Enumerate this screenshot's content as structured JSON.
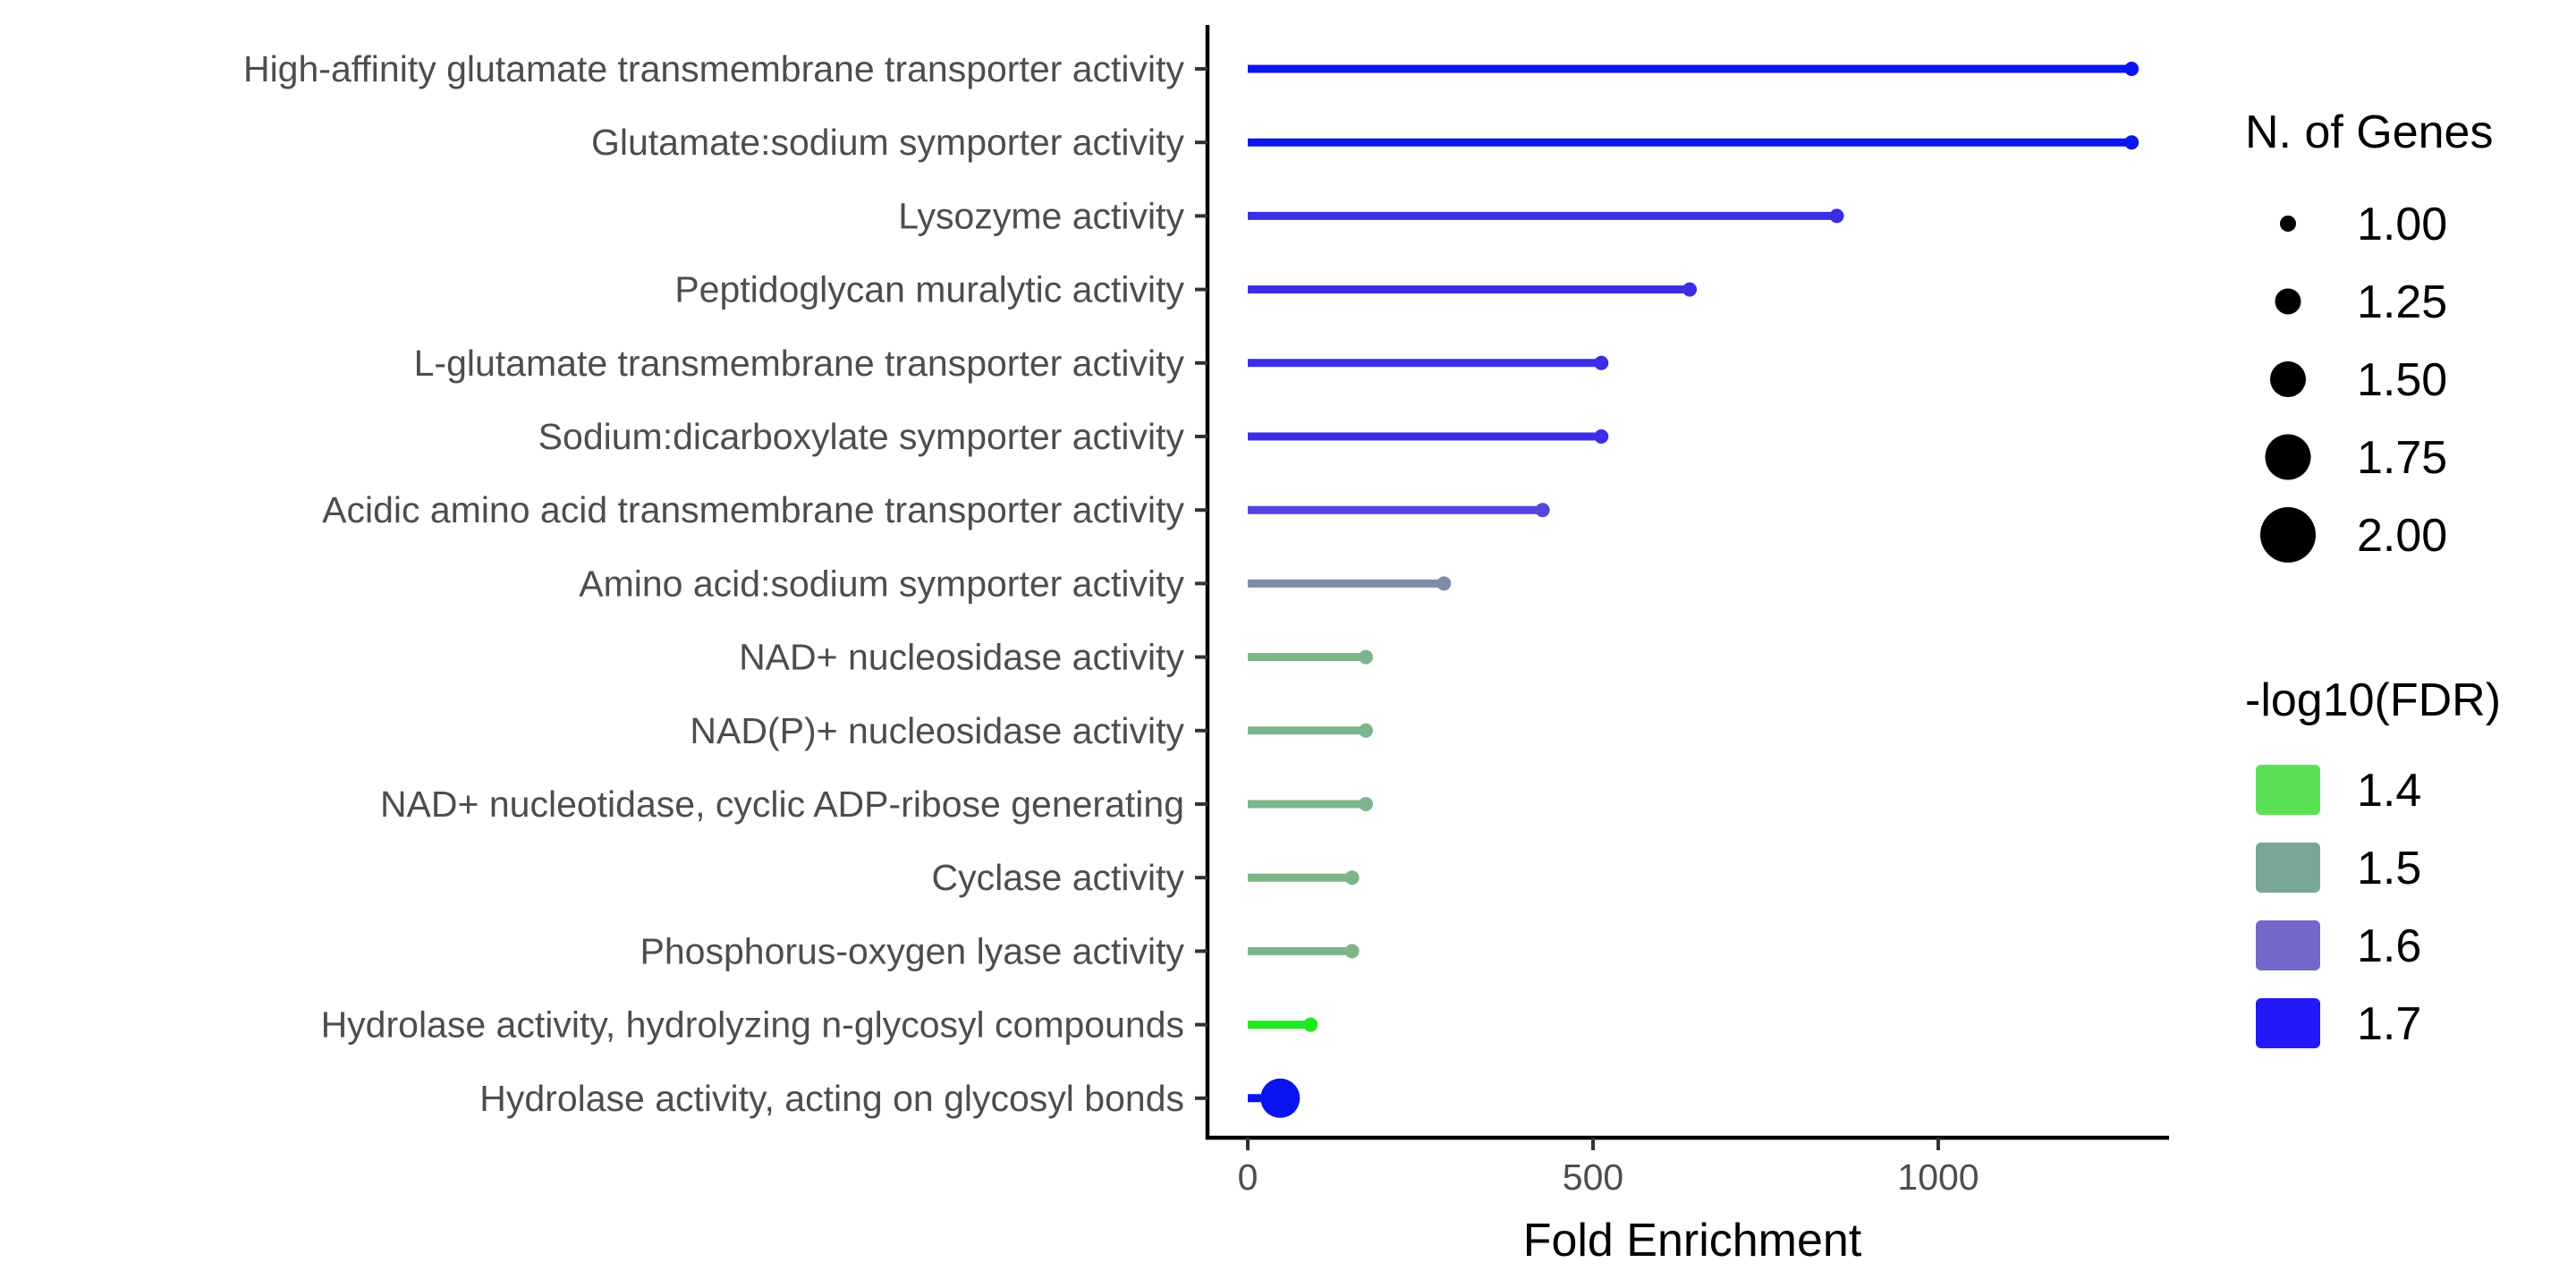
{
  "chart_data": {
    "type": "lollipop",
    "xlabel": "Fold Enrichment",
    "ylabel": "",
    "xlim": [
      -60,
      1355
    ],
    "xticks": [
      0,
      500,
      1000
    ],
    "categories": [
      "High-affinity glutamate transmembrane transporter activity",
      "Glutamate:sodium symporter activity",
      "Lysozyme activity",
      "Peptidoglycan muralytic activity",
      "L-glutamate transmembrane transporter activity",
      "Sodium:dicarboxylate symporter activity",
      "Acidic amino acid transmembrane transporter activity",
      "Amino acid:sodium symporter activity",
      "NAD+ nucleosidase activity",
      "NAD(P)+ nucleosidase activity",
      "NAD+ nucleotidase, cyclic ADP-ribose generating",
      "Cyclase activity",
      "Phosphorus-oxygen lyase activity",
      "Hydrolase activity, hydrolyzing n-glycosyl compounds",
      "Hydrolase activity, acting on glycosyl bonds"
    ],
    "fold_enrichment": [
      1280,
      1280,
      853,
      640,
      512,
      512,
      427,
      284,
      171,
      171,
      171,
      151,
      151,
      91,
      47
    ],
    "n_genes": [
      1,
      1,
      1,
      1,
      1,
      1,
      1,
      1,
      1,
      1,
      1,
      1,
      1,
      1,
      2
    ],
    "neg_log10_fdr": [
      1.72,
      1.72,
      1.69,
      1.68,
      1.67,
      1.67,
      1.64,
      1.52,
      1.48,
      1.48,
      1.48,
      1.48,
      1.48,
      1.4,
      1.72
    ],
    "colors": [
      "#0a14f0",
      "#0a14f0",
      "#3b2ee6",
      "#3b2ee6",
      "#3b2ee6",
      "#3b2ee6",
      "#5545e0",
      "#7b8da8",
      "#7db48c",
      "#7db48c",
      "#7db48c",
      "#7db48c",
      "#7db48c",
      "#1ee81e",
      "#0a14f0"
    ],
    "legend_size": {
      "title": "N. of Genes",
      "entries": [
        "1.00",
        "1.25",
        "1.50",
        "1.75",
        "2.00"
      ],
      "values": [
        1.0,
        1.25,
        1.5,
        1.75,
        2.0
      ]
    },
    "legend_color": {
      "title": "-log10(FDR)",
      "entries": [
        "1.4",
        "1.5",
        "1.6",
        "1.7"
      ],
      "colors": [
        "#5be154",
        "#7aa69a",
        "#7468cc",
        "#2418f8"
      ]
    },
    "legend_placement": "right",
    "grid": false
  }
}
